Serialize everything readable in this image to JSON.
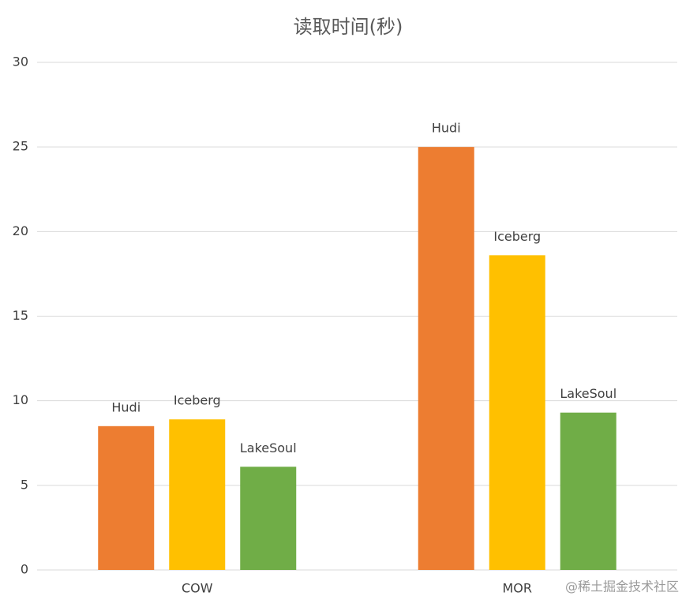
{
  "chart_data": {
    "type": "bar",
    "title": "读取时间(秒)",
    "categories": [
      "COW",
      "MOR"
    ],
    "series": [
      {
        "name": "Hudi",
        "color": "#ED7D31",
        "values": [
          8.5,
          25
        ]
      },
      {
        "name": "Iceberg",
        "color": "#FFC000",
        "values": [
          8.9,
          18.6
        ]
      },
      {
        "name": "LakeSoul",
        "color": "#70AD47",
        "values": [
          6.1,
          9.3
        ]
      }
    ],
    "ylim": [
      0,
      30
    ],
    "yticks": [
      0,
      5,
      10,
      15,
      20,
      25,
      30
    ],
    "grid": true
  },
  "watermark": "@稀土掘金技术社区"
}
